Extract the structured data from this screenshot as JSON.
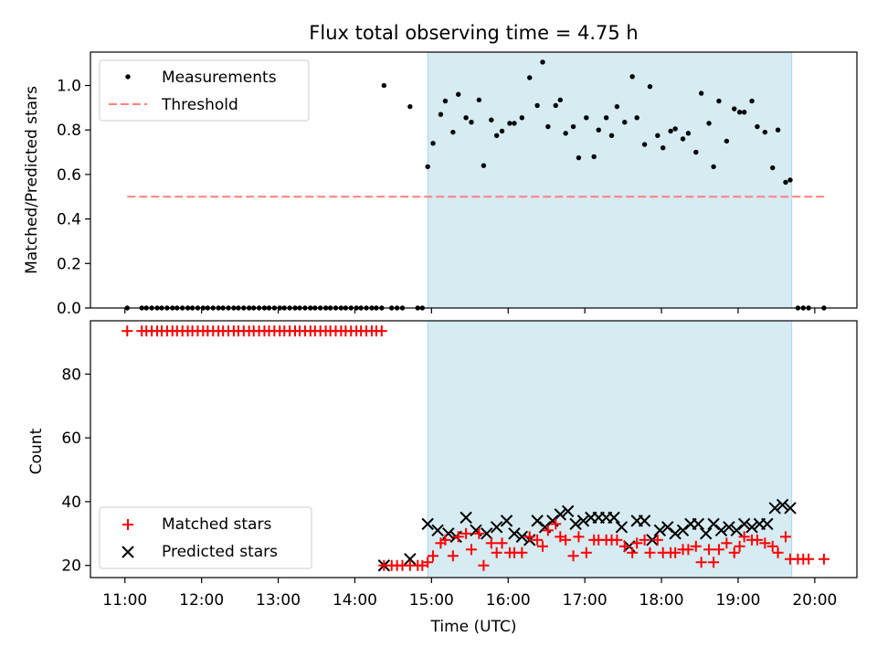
{
  "chart_data": [
    {
      "type": "scatter",
      "title": "Flux total observing time = 4.75 h",
      "xlabel": "",
      "ylabel": "Matched/Predicted stars",
      "xlim": [
        10.55,
        20.55
      ],
      "ylim": [
        0,
        1.15
      ],
      "yticks": [
        0.0,
        0.2,
        0.4,
        0.6,
        0.8,
        1.0
      ],
      "ytick_labels": [
        "0.0",
        "0.2",
        "0.4",
        "0.6",
        "0.8",
        "1.0"
      ],
      "legend_position": "upper-left",
      "shaded_span": {
        "from": 14.95,
        "to": 19.7,
        "color": "#add8e6"
      },
      "series": [
        {
          "name": "Measurements",
          "kind": "points",
          "color": "#000000",
          "x": [
            11.03,
            11.22,
            11.28,
            11.35,
            11.42,
            11.48,
            11.55,
            11.62,
            11.68,
            11.75,
            11.82,
            11.88,
            11.95,
            12.02,
            12.08,
            12.15,
            12.22,
            12.28,
            12.35,
            12.42,
            12.48,
            12.55,
            12.62,
            12.68,
            12.75,
            12.82,
            12.88,
            12.95,
            13.02,
            13.08,
            13.15,
            13.22,
            13.28,
            13.35,
            13.42,
            13.48,
            13.55,
            13.62,
            13.68,
            13.75,
            13.82,
            13.88,
            13.95,
            14.02,
            14.08,
            14.15,
            14.22,
            14.28,
            14.35,
            14.38,
            14.48,
            14.55,
            14.62,
            14.72,
            14.82,
            14.88,
            14.95,
            15.02,
            15.12,
            15.18,
            15.28,
            15.35,
            15.45,
            15.52,
            15.62,
            15.68,
            15.78,
            15.85,
            15.92,
            16.02,
            16.08,
            16.18,
            16.28,
            16.38,
            16.45,
            16.52,
            16.62,
            16.68,
            16.75,
            16.85,
            16.92,
            17.02,
            17.12,
            17.18,
            17.28,
            17.35,
            17.42,
            17.52,
            17.62,
            17.68,
            17.78,
            17.85,
            17.95,
            18.02,
            18.12,
            18.18,
            18.28,
            18.35,
            18.45,
            18.52,
            18.62,
            18.68,
            18.75,
            18.85,
            18.95,
            19.02,
            19.08,
            19.18,
            19.25,
            19.35,
            19.45,
            19.52,
            19.62,
            19.68,
            19.78,
            19.85,
            19.92,
            20.12
          ],
          "y": [
            0.0,
            0.0,
            0.0,
            0.0,
            0.0,
            0.0,
            0.0,
            0.0,
            0.0,
            0.0,
            0.0,
            0.0,
            0.0,
            0.0,
            0.0,
            0.0,
            0.0,
            0.0,
            0.0,
            0.0,
            0.0,
            0.0,
            0.0,
            0.0,
            0.0,
            0.0,
            0.0,
            0.0,
            0.0,
            0.0,
            0.0,
            0.0,
            0.0,
            0.0,
            0.0,
            0.0,
            0.0,
            0.0,
            0.0,
            0.0,
            0.0,
            0.0,
            0.0,
            0.0,
            0.0,
            0.0,
            0.0,
            0.0,
            0.0,
            1.0,
            0.0,
            0.0,
            0.0,
            0.905,
            0.0,
            0.0,
            0.635,
            0.74,
            0.87,
            0.93,
            0.79,
            0.96,
            0.855,
            0.835,
            0.935,
            0.64,
            0.845,
            0.775,
            0.795,
            0.83,
            0.83,
            0.855,
            1.035,
            0.91,
            1.105,
            0.815,
            0.91,
            0.935,
            0.785,
            0.815,
            0.675,
            0.855,
            0.68,
            0.8,
            0.855,
            0.775,
            0.905,
            0.835,
            1.04,
            0.855,
            0.735,
            0.995,
            0.775,
            0.72,
            0.795,
            0.805,
            0.76,
            0.785,
            0.7,
            0.965,
            0.83,
            0.635,
            0.93,
            0.75,
            0.895,
            0.88,
            0.88,
            0.93,
            0.815,
            0.79,
            0.63,
            0.8,
            0.565,
            0.575,
            0.0,
            0.0,
            0.0,
            0.0
          ]
        },
        {
          "name": "Threshold",
          "kind": "dashed-line",
          "color": "#ff7f7f",
          "x": [
            11.03,
            20.12
          ],
          "y": [
            0.5,
            0.5
          ]
        }
      ]
    },
    {
      "type": "scatter",
      "title": "",
      "xlabel": "Time (UTC)",
      "ylabel": "Count",
      "xlim": [
        10.55,
        20.55
      ],
      "ylim": [
        16.2,
        96.7
      ],
      "yticks": [
        20,
        40,
        60,
        80
      ],
      "ytick_labels": [
        "20",
        "40",
        "60",
        "80"
      ],
      "xticks": [
        11,
        12,
        13,
        14,
        15,
        16,
        17,
        18,
        19,
        20
      ],
      "xtick_labels": [
        "11:00",
        "12:00",
        "13:00",
        "14:00",
        "15:00",
        "16:00",
        "17:00",
        "18:00",
        "19:00",
        "20:00"
      ],
      "legend_position": "lower-left",
      "shaded_span": {
        "from": 14.95,
        "to": 19.7,
        "color": "#add8e6"
      },
      "series": [
        {
          "name": "Matched stars",
          "kind": "plus",
          "color": "#ff0000",
          "x": [
            11.03,
            11.22,
            11.28,
            11.35,
            11.42,
            11.48,
            11.55,
            11.62,
            11.68,
            11.75,
            11.82,
            11.88,
            11.95,
            12.02,
            12.08,
            12.15,
            12.22,
            12.28,
            12.35,
            12.42,
            12.48,
            12.55,
            12.62,
            12.68,
            12.75,
            12.82,
            12.88,
            12.95,
            13.02,
            13.08,
            13.15,
            13.22,
            13.28,
            13.35,
            13.42,
            13.48,
            13.55,
            13.62,
            13.68,
            13.75,
            13.82,
            13.88,
            13.95,
            14.02,
            14.08,
            14.15,
            14.22,
            14.28,
            14.35,
            14.38,
            14.48,
            14.55,
            14.62,
            14.72,
            14.82,
            14.88,
            14.95,
            15.02,
            15.12,
            15.18,
            15.28,
            15.35,
            15.45,
            15.52,
            15.62,
            15.68,
            15.78,
            15.85,
            15.92,
            16.02,
            16.08,
            16.18,
            16.28,
            16.38,
            16.45,
            16.52,
            16.62,
            16.68,
            16.75,
            16.85,
            16.92,
            17.02,
            17.12,
            17.18,
            17.28,
            17.35,
            17.42,
            17.52,
            17.62,
            17.68,
            17.78,
            17.85,
            17.95,
            18.02,
            18.12,
            18.18,
            18.28,
            18.35,
            18.45,
            18.52,
            18.62,
            18.68,
            18.75,
            18.85,
            18.95,
            19.02,
            19.08,
            19.18,
            19.25,
            19.35,
            19.45,
            19.52,
            19.62,
            19.68,
            19.78,
            19.85,
            19.92,
            20.12
          ],
          "y": [
            93.5,
            93.5,
            93.5,
            93.5,
            93.5,
            93.5,
            93.5,
            93.5,
            93.5,
            93.5,
            93.5,
            93.5,
            93.5,
            93.5,
            93.5,
            93.5,
            93.5,
            93.5,
            93.5,
            93.5,
            93.5,
            93.5,
            93.5,
            93.5,
            93.5,
            93.5,
            93.5,
            93.5,
            93.5,
            93.5,
            93.5,
            93.5,
            93.5,
            93.5,
            93.5,
            93.5,
            93.5,
            93.5,
            93.5,
            93.5,
            93.5,
            93.5,
            93.5,
            93.5,
            93.5,
            93.5,
            93.5,
            93.5,
            93.5,
            20,
            20,
            20,
            20,
            20,
            20,
            20,
            21,
            23,
            27,
            28,
            23,
            29,
            30,
            25,
            30,
            20,
            27,
            24,
            27,
            24,
            24,
            24,
            29,
            28,
            26,
            31,
            33,
            29,
            28,
            23,
            29,
            24,
            28,
            28,
            28,
            28,
            28,
            26,
            24,
            27,
            28,
            24,
            28,
            24,
            24,
            24,
            25,
            25,
            26,
            21,
            25,
            21,
            25,
            27,
            24,
            26,
            29,
            28,
            28,
            27,
            26,
            24,
            29,
            22,
            22,
            22,
            22,
            22
          ]
        },
        {
          "name": "Predicted stars",
          "kind": "cross",
          "color": "#000000",
          "x": [
            14.38,
            14.72,
            14.95,
            15.08,
            15.22,
            15.32,
            15.45,
            15.58,
            15.72,
            15.85,
            15.98,
            16.08,
            16.18,
            16.28,
            16.38,
            16.48,
            16.58,
            16.68,
            16.78,
            16.88,
            16.98,
            17.08,
            17.18,
            17.28,
            17.38,
            17.48,
            17.58,
            17.68,
            17.78,
            17.88,
            17.98,
            18.08,
            18.18,
            18.28,
            18.38,
            18.48,
            18.58,
            18.68,
            18.78,
            18.88,
            18.98,
            19.08,
            19.18,
            19.28,
            19.38,
            19.48,
            19.58,
            19.68
          ],
          "y": [
            20,
            22,
            33,
            31,
            30,
            29,
            35,
            31,
            30,
            32,
            34,
            30,
            29,
            28,
            34,
            32,
            34,
            36,
            37,
            33,
            34,
            35,
            35,
            35,
            35,
            32,
            26,
            34,
            34,
            28,
            31,
            32,
            30,
            31,
            33,
            33,
            30,
            33,
            31,
            32,
            31,
            33,
            32,
            33,
            33,
            38,
            39,
            38
          ]
        }
      ]
    }
  ]
}
